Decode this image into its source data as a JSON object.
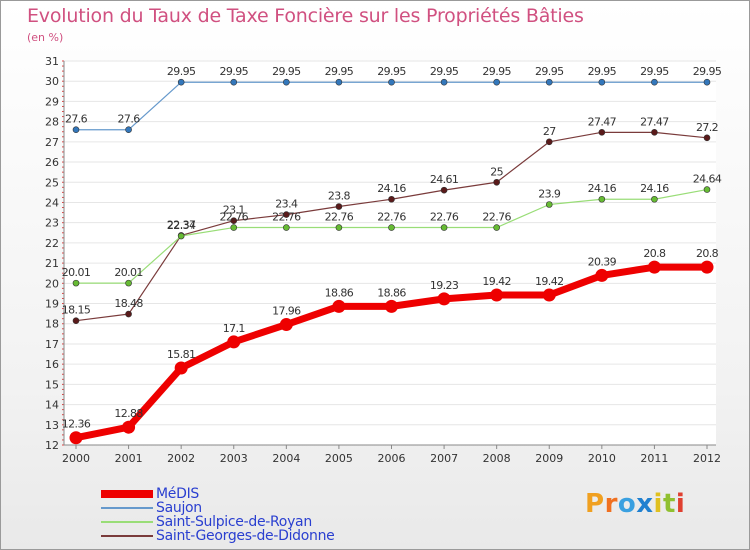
{
  "chart_data": {
    "type": "line",
    "title": "Evolution du Taux de Taxe Foncière sur les Propriétés Bâties",
    "subtitle": "(en %)",
    "x": [
      "2000",
      "2001",
      "2002",
      "2003",
      "2004",
      "2005",
      "2006",
      "2007",
      "2008",
      "2009",
      "2010",
      "2011",
      "2012"
    ],
    "ylim": [
      12,
      31
    ],
    "yticks": [
      12,
      13,
      14,
      15,
      16,
      17,
      18,
      19,
      20,
      21,
      22,
      23,
      24,
      25,
      26,
      27,
      28,
      29,
      30,
      31
    ],
    "grid": "horizontal",
    "legend_position": "bottom-left",
    "series": [
      {
        "name": "Saujon",
        "color": "#6699cc",
        "marker": "#3377bb",
        "width": 1.2,
        "values": [
          27.6,
          27.6,
          29.95,
          29.95,
          29.95,
          29.95,
          29.95,
          29.95,
          29.95,
          29.95,
          29.95,
          29.95,
          29.95
        ],
        "labels": [
          "27.6",
          "27.6",
          "29.95",
          "29.95",
          "29.95",
          "29.95",
          "29.95",
          "29.95",
          "29.95",
          "29.95",
          "29.95",
          "29.95",
          "29.95"
        ]
      },
      {
        "name": "Saint-Georges-de-Didonne",
        "color": "#7a3b3b",
        "marker": "#5a1a1a",
        "width": 1.2,
        "values": [
          18.15,
          18.48,
          22.37,
          23.1,
          23.4,
          23.8,
          24.16,
          24.61,
          25,
          27,
          27.47,
          27.47,
          27.2
        ],
        "labels": [
          "18.15",
          "18.48",
          "22.37",
          "23.1",
          "23.4",
          "23.8",
          "24.16",
          "24.61",
          "25",
          "27",
          "27.47",
          "27.47",
          "27.2"
        ]
      },
      {
        "name": "Saint-Sulpice-de-Royan",
        "color": "#99dd77",
        "marker": "#66bb33",
        "width": 1.2,
        "values": [
          20.01,
          20.01,
          22.34,
          22.76,
          22.76,
          22.76,
          22.76,
          22.76,
          22.76,
          23.9,
          24.16,
          24.16,
          24.64
        ],
        "labels": [
          "20.01",
          "20.01",
          "22.34",
          "22.76",
          "22.76",
          "22.76",
          "22.76",
          "22.76",
          "22.76",
          "23.9",
          "24.16",
          "24.16",
          "24.64"
        ]
      },
      {
        "name": "MéDIS",
        "color": "#ee0000",
        "marker": "#ee0000",
        "width": 7,
        "values": [
          12.36,
          12.88,
          15.81,
          17.1,
          17.96,
          18.86,
          18.86,
          19.23,
          19.42,
          19.42,
          20.39,
          20.8,
          20.8
        ],
        "labels": [
          "12.36",
          "12.88",
          "15.81",
          "17.1",
          "17.96",
          "18.86",
          "18.86",
          "19.23",
          "19.42",
          "19.42",
          "20.39",
          "20.8",
          "20.8"
        ]
      }
    ]
  },
  "legend": [
    {
      "label": "MéDIS",
      "color": "#ee0000",
      "thick": true
    },
    {
      "label": "Saujon",
      "color": "#6699cc",
      "thick": false
    },
    {
      "label": "Saint-Sulpice-de-Royan",
      "color": "#99dd77",
      "thick": false
    },
    {
      "label": "Saint-Georges-de-Didonne",
      "color": "#7a3b3b",
      "thick": false
    }
  ],
  "logo": {
    "text": "Proxiti",
    "letters": [
      "P",
      "r",
      "o",
      "x",
      "i",
      "t",
      "i"
    ],
    "colors": [
      "#f0a020",
      "#f07020",
      "#3aa0e0",
      "#2080d0",
      "#e0c020",
      "#90c030",
      "#e04030"
    ]
  }
}
